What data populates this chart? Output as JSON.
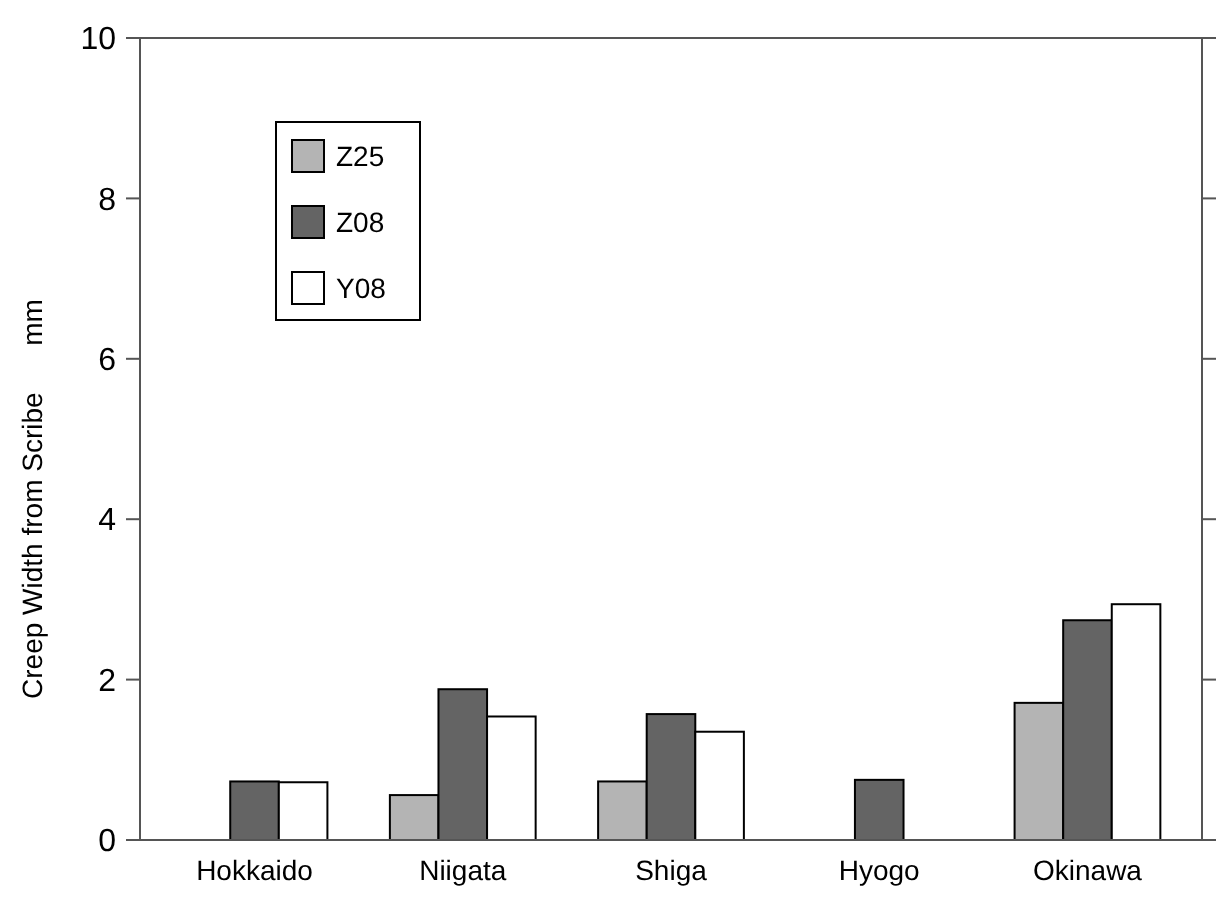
{
  "chart_data": {
    "type": "bar",
    "ylabel": "Creep Width from Scribe      mm",
    "categories": [
      "Hokkaido",
      "Niigata",
      "Shiga",
      "Hyogo",
      "Okinawa"
    ],
    "series": [
      {
        "name": "Z25",
        "color": "#b4b4b4",
        "values": [
          null,
          0.56,
          0.73,
          null,
          1.71
        ]
      },
      {
        "name": "Z08",
        "color": "#646464",
        "values": [
          0.73,
          1.88,
          1.57,
          0.75,
          2.74
        ]
      },
      {
        "name": "Y08",
        "color": "#ffffff",
        "values": [
          0.72,
          1.54,
          1.35,
          null,
          2.94
        ]
      }
    ],
    "ylim": [
      0,
      10
    ],
    "yticks": [
      0,
      2,
      4,
      6,
      8,
      10
    ],
    "legend": "top left",
    "grid": false
  }
}
